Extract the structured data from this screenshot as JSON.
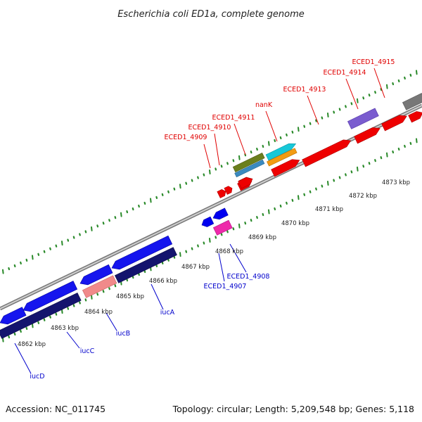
{
  "title": "Escherichia coli ED1a, complete genome",
  "footer": {
    "accession": "Accession: NC_011745",
    "summary": "Topology: circular; Length: 5,209,548 bp; Genes: 5,118"
  },
  "colors": {
    "forward_label": "#e00000",
    "reverse_label": "#0000cc",
    "backbone": "#999999",
    "tick": "#2a8a2a"
  },
  "kbp_labels": [
    "4862 kbp",
    "4863 kbp",
    "4864 kbp",
    "4865 kbp",
    "4866 kbp",
    "4867 kbp",
    "4868 kbp",
    "4869 kbp",
    "4870 kbp",
    "4871 kbp",
    "4872 kbp",
    "4873 kbp"
  ],
  "top_genes": [
    "ECED1_4909",
    "ECED1_4910",
    "ECED1_4911",
    "nanK",
    "ECED1_4913",
    "ECED1_4914",
    "ECED1_4915"
  ],
  "bottom_genes": [
    "iucD",
    "iucC",
    "iucB",
    "iucA",
    "ECED1_4907",
    "ECED1_4908"
  ]
}
